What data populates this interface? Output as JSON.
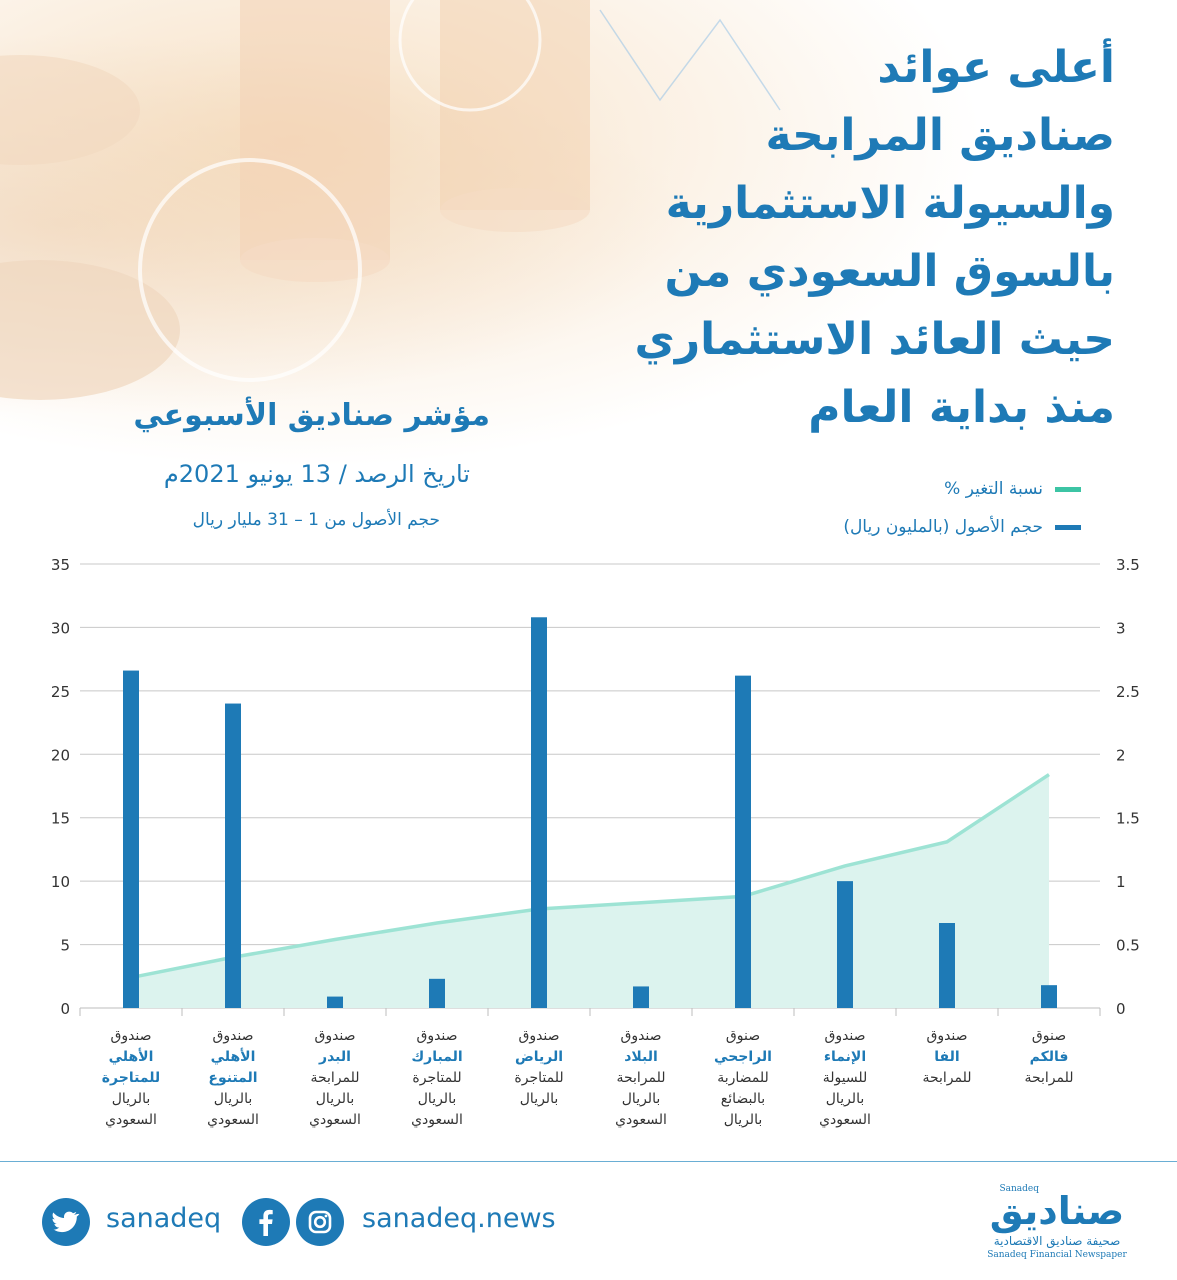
{
  "headline": {
    "lines": [
      "أعلى عوائد",
      "صناديق المرابحة",
      "والسيولة الاستثمارية",
      "بالسوق السعودي من",
      "حيث العائد الاستثماري",
      "منذ بداية العام"
    ]
  },
  "subheader": {
    "title": "مؤشر صناديق الأسبوعي",
    "date": "تاريخ الرصد / 13 يونيو 2021م",
    "range": "حجم الأصول من 1 – 31 مليار ريال"
  },
  "legend": [
    {
      "label": "نسبة التغير %",
      "color": "#3cc4a4"
    },
    {
      "label": "حجم الأصول (بالمليون ريال)",
      "color": "#1e7ab6"
    }
  ],
  "colors": {
    "bar": "#1e7ab6",
    "line": "#9de3d4",
    "area": "#dcf3ee",
    "grid": "#c8c8c8"
  },
  "chart_data": {
    "type": "bar",
    "categories": [
      "صندوق الأهلي للمتاجرة بالريال السعودي",
      "صندوق الأهلي المتنوع بالريال السعودي",
      "صندوق البدر للمرابحة بالريال السعودي",
      "صندوق المبارك للمتاجرة بالريال السعودي",
      "صندوق الرياض للمتاجرة بالريال",
      "صندوق البلاد للمرابحة بالريال السعودي",
      "صنوق الراجحي للمضاربة بالبضائع بالريال",
      "صندوق الإنماء للسيولة بالريال السعودي",
      "صندوق الفا للمرابحة",
      "صنوق فالكم للمرابحة"
    ],
    "category_lines": [
      [
        {
          "t": "صندوق",
          "hl": false
        },
        {
          "t": "الأهلي",
          "hl": true
        },
        {
          "t": "للمتاجرة",
          "hl": true
        },
        {
          "t": "بالريال",
          "hl": false
        },
        {
          "t": "السعودي",
          "hl": false
        }
      ],
      [
        {
          "t": "صندوق",
          "hl": false
        },
        {
          "t": "الأهلي",
          "hl": true
        },
        {
          "t": "المتنوع",
          "hl": true
        },
        {
          "t": "بالريال",
          "hl": false
        },
        {
          "t": "السعودي",
          "hl": false
        }
      ],
      [
        {
          "t": "صندوق",
          "hl": false
        },
        {
          "t": "البدر",
          "hl": true
        },
        {
          "t": "للمرابحة",
          "hl": false
        },
        {
          "t": "بالريال",
          "hl": false
        },
        {
          "t": "السعودي",
          "hl": false
        }
      ],
      [
        {
          "t": "صندوق",
          "hl": false
        },
        {
          "t": "المبارك",
          "hl": true
        },
        {
          "t": "للمتاجرة",
          "hl": false
        },
        {
          "t": "بالريال",
          "hl": false
        },
        {
          "t": "السعودي",
          "hl": false
        }
      ],
      [
        {
          "t": "صندوق",
          "hl": false
        },
        {
          "t": "الرياض",
          "hl": true
        },
        {
          "t": "للمتاجرة",
          "hl": false
        },
        {
          "t": "بالريال",
          "hl": false
        }
      ],
      [
        {
          "t": "صندوق",
          "hl": false
        },
        {
          "t": "البلاد",
          "hl": true
        },
        {
          "t": "للمرابحة",
          "hl": false
        },
        {
          "t": "بالريال",
          "hl": false
        },
        {
          "t": "السعودي",
          "hl": false
        }
      ],
      [
        {
          "t": "صنوق",
          "hl": false
        },
        {
          "t": "الراجحي",
          "hl": true
        },
        {
          "t": "للمضاربة",
          "hl": false
        },
        {
          "t": "بالبضائع",
          "hl": false
        },
        {
          "t": "بالريال",
          "hl": false
        }
      ],
      [
        {
          "t": "صندوق",
          "hl": false
        },
        {
          "t": "الإنماء",
          "hl": true
        },
        {
          "t": "للسيولة",
          "hl": false
        },
        {
          "t": "بالريال",
          "hl": false
        },
        {
          "t": "السعودي",
          "hl": false
        }
      ],
      [
        {
          "t": "صندوق",
          "hl": false
        },
        {
          "t": "الفا",
          "hl": true
        },
        {
          "t": "للمرابحة",
          "hl": false
        }
      ],
      [
        {
          "t": "صنوق",
          "hl": false
        },
        {
          "t": "فالكم",
          "hl": true
        },
        {
          "t": "للمرابحة",
          "hl": false
        }
      ]
    ],
    "series": [
      {
        "name": "حجم الأصول (بالمليون ريال)",
        "axis": "left",
        "kind": "bar",
        "values": [
          26.6,
          24.0,
          0.9,
          2.3,
          30.8,
          1.7,
          26.2,
          10.0,
          6.7,
          1.8
        ]
      },
      {
        "name": "نسبة التغير %",
        "axis": "right",
        "kind": "area",
        "values": [
          0.24,
          0.4,
          0.54,
          0.67,
          0.78,
          0.83,
          0.88,
          1.12,
          1.31,
          1.84
        ]
      }
    ],
    "ylim_left": [
      0,
      35
    ],
    "yticks_left": [
      "0",
      "5",
      "10",
      "15",
      "20",
      "25",
      "30",
      "35"
    ],
    "ylim_right": [
      0,
      3.5
    ],
    "yticks_right": [
      "0",
      "0.5",
      "1",
      "1.5",
      "2",
      "2.5",
      "3",
      "3.5"
    ],
    "grid": true
  },
  "footer": {
    "twitter_handle": "sanadeq",
    "website": "sanadeq.news",
    "logo_main": "صناديق",
    "logo_tag": "Sanadeq",
    "logo_sub": "صحيفة صناديق الاقتصادية",
    "logo_en": "Sanadeq Financial Newspaper"
  }
}
